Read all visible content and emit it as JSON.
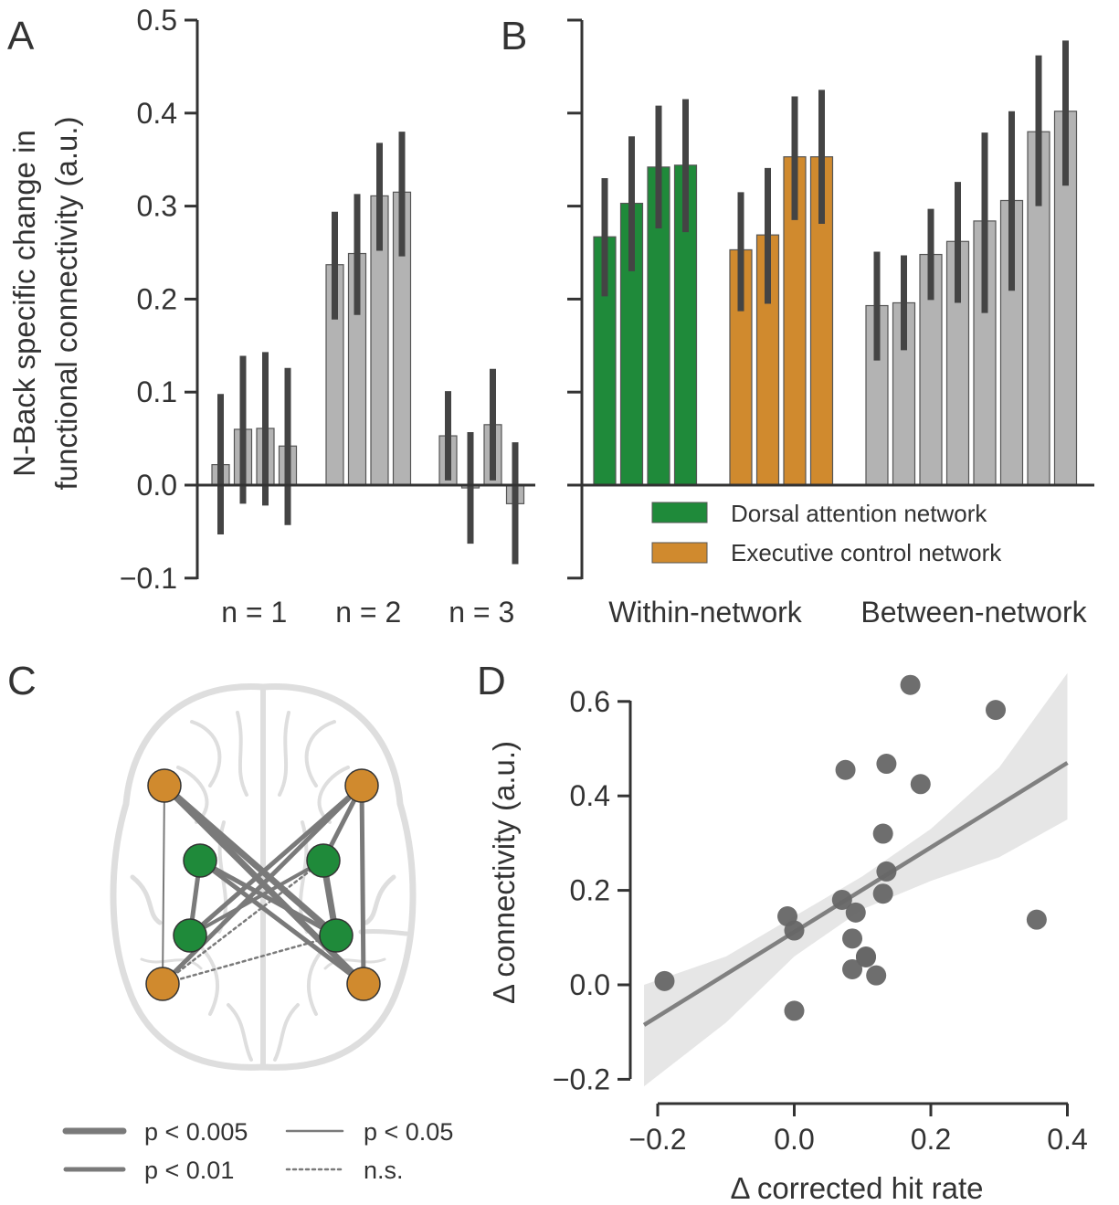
{
  "panels": {
    "A": {
      "label": "A",
      "ylabel_line1": "N-Back specific change in",
      "ylabel_line2": "functional connectivity (a.u.)",
      "yticks": [
        "0.5",
        "0.4",
        "0.3",
        "0.2",
        "0.1",
        "0.0",
        "−0.1"
      ],
      "groups": [
        "n = 1",
        "n = 2",
        "n = 3"
      ]
    },
    "B": {
      "label": "B",
      "groups": [
        "Within-network",
        "Between-network"
      ],
      "legend": [
        {
          "label": "Dorsal attention network",
          "color": "#1f8a3a"
        },
        {
          "label": "Executive control network",
          "color": "#d08a2e"
        }
      ]
    },
    "C": {
      "label": "C",
      "legend": [
        {
          "label": "p < 0.005",
          "style": "thick"
        },
        {
          "label": "p < 0.05",
          "style": "thin"
        },
        {
          "label": "p < 0.01",
          "style": "medium"
        },
        {
          "label": "n.s.",
          "style": "dotted"
        }
      ]
    },
    "D": {
      "label": "D",
      "xlabel": "Δ corrected hit rate",
      "ylabel": "Δ connectivity (a.u.)",
      "xticks": [
        "−0.2",
        "0.0",
        "0.2",
        "0.4"
      ],
      "yticks": [
        "0.6",
        "0.4",
        "0.2",
        "0.0",
        "−0.2"
      ]
    }
  },
  "colors": {
    "green": "#1f8a3a",
    "orange": "#d08a2e",
    "gray_bar": "#b3b3b3",
    "error": "#444444",
    "scatter": "#666666",
    "brain": "#dedede"
  },
  "chart_data": [
    {
      "panel": "A",
      "type": "bar",
      "ylim": [
        -0.1,
        0.5
      ],
      "groups": [
        {
          "name": "n = 1",
          "values": [
            0.022,
            0.06,
            0.061,
            0.042
          ],
          "ci": [
            [
              -0.053,
              0.098
            ],
            [
              -0.02,
              0.139
            ],
            [
              -0.022,
              0.143
            ],
            [
              -0.043,
              0.126
            ]
          ]
        },
        {
          "name": "n = 2",
          "values": [
            0.237,
            0.249,
            0.311,
            0.315
          ],
          "ci": [
            [
              0.178,
              0.294
            ],
            [
              0.183,
              0.313
            ],
            [
              0.252,
              0.368
            ],
            [
              0.246,
              0.38
            ]
          ]
        },
        {
          "name": "n = 3",
          "values": [
            0.053,
            -0.003,
            0.065,
            -0.02
          ],
          "ci": [
            [
              0.005,
              0.101
            ],
            [
              -0.063,
              0.057
            ],
            [
              0.005,
              0.125
            ],
            [
              -0.085,
              0.046
            ]
          ]
        }
      ]
    },
    {
      "panel": "B",
      "type": "bar",
      "ylim": [
        -0.1,
        0.5
      ],
      "groups": [
        {
          "name": "Within-network",
          "bars": [
            {
              "value": 0.267,
              "ci": [
                0.203,
                0.33
              ],
              "network": "Dorsal attention network"
            },
            {
              "value": 0.303,
              "ci": [
                0.23,
                0.375
              ],
              "network": "Dorsal attention network"
            },
            {
              "value": 0.342,
              "ci": [
                0.276,
                0.408
              ],
              "network": "Dorsal attention network"
            },
            {
              "value": 0.344,
              "ci": [
                0.272,
                0.415
              ],
              "network": "Dorsal attention network"
            },
            {
              "value": 0.253,
              "ci": [
                0.187,
                0.315
              ],
              "network": "Executive control network"
            },
            {
              "value": 0.269,
              "ci": [
                0.195,
                0.341
              ],
              "network": "Executive control network"
            },
            {
              "value": 0.353,
              "ci": [
                0.285,
                0.418
              ],
              "network": "Executive control network"
            },
            {
              "value": 0.353,
              "ci": [
                0.281,
                0.425
              ],
              "network": "Executive control network"
            }
          ]
        },
        {
          "name": "Between-network",
          "bars": [
            {
              "value": 0.193,
              "ci": [
                0.134,
                0.251
              ]
            },
            {
              "value": 0.196,
              "ci": [
                0.145,
                0.247
              ]
            },
            {
              "value": 0.248,
              "ci": [
                0.199,
                0.297
              ]
            },
            {
              "value": 0.262,
              "ci": [
                0.196,
                0.326
              ]
            },
            {
              "value": 0.284,
              "ci": [
                0.185,
                0.379
              ]
            },
            {
              "value": 0.306,
              "ci": [
                0.209,
                0.402
              ]
            },
            {
              "value": 0.38,
              "ci": [
                0.3,
                0.462
              ]
            },
            {
              "value": 0.402,
              "ci": [
                0.322,
                0.478
              ]
            }
          ]
        }
      ]
    },
    {
      "panel": "D",
      "type": "scatter",
      "xlim": [
        -0.22,
        0.4
      ],
      "ylim": [
        -0.2,
        0.65
      ],
      "points": [
        [
          -0.19,
          0.008
        ],
        [
          -0.01,
          0.145
        ],
        [
          0.0,
          0.115
        ],
        [
          0.0,
          -0.055
        ],
        [
          0.07,
          0.18
        ],
        [
          0.075,
          0.455
        ],
        [
          0.085,
          0.098
        ],
        [
          0.09,
          0.153
        ],
        [
          0.085,
          0.033
        ],
        [
          0.105,
          0.06
        ],
        [
          0.105,
          0.058
        ],
        [
          0.12,
          0.02
        ],
        [
          0.13,
          0.32
        ],
        [
          0.13,
          0.193
        ],
        [
          0.135,
          0.24
        ],
        [
          0.135,
          0.468
        ],
        [
          0.17,
          0.635
        ],
        [
          0.185,
          0.425
        ],
        [
          0.295,
          0.582
        ],
        [
          0.355,
          0.138
        ]
      ],
      "regression": {
        "x": [
          -0.22,
          0.4
        ],
        "y": [
          -0.085,
          0.47
        ]
      },
      "ci_band": {
        "x": [
          -0.22,
          -0.1,
          0.0,
          0.1,
          0.2,
          0.3,
          0.4
        ],
        "lower": [
          -0.215,
          -0.08,
          0.06,
          0.16,
          0.22,
          0.27,
          0.35
        ],
        "upper": [
          0.0,
          0.06,
          0.145,
          0.23,
          0.33,
          0.46,
          0.66
        ]
      }
    }
  ]
}
